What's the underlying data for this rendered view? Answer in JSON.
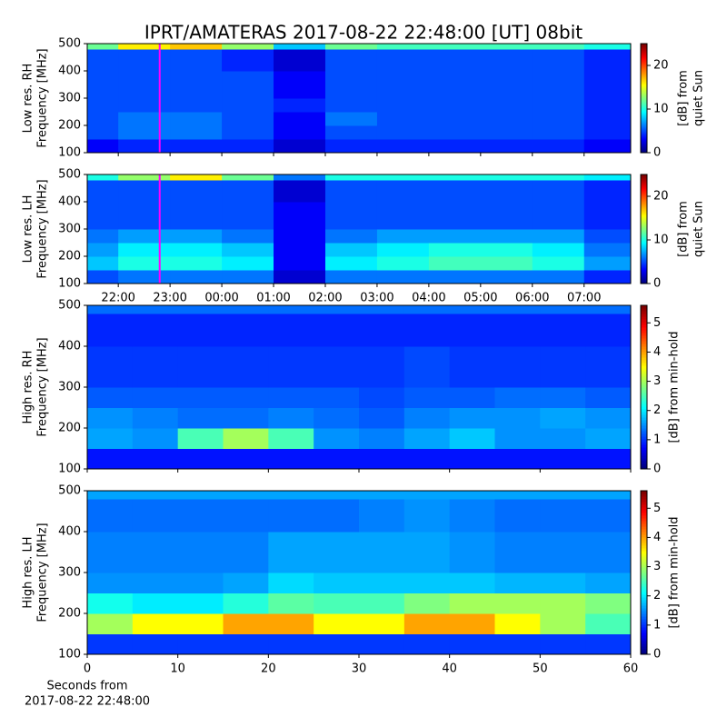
{
  "title": "IPRT/AMATERAS 2017-08-22 22:48:00 [UT]   08bit",
  "chart_data": [
    {
      "type": "heatmap",
      "ylabel": [
        "Low res. RH",
        "Frequency [MHz]"
      ],
      "zlabel": [
        "[dB] from",
        "quiet Sun"
      ],
      "colormap": "jet",
      "xlim": [
        21.4,
        31.9
      ],
      "xticks": [
        {
          "value": 22,
          "label": "22:00"
        },
        {
          "value": 23,
          "label": "23:00"
        },
        {
          "value": 24,
          "label": "00:00"
        },
        {
          "value": 25,
          "label": "01:00"
        },
        {
          "value": 26,
          "label": "02:00"
        },
        {
          "value": 27,
          "label": "03:00"
        },
        {
          "value": 28,
          "label": "04:00"
        },
        {
          "value": 29,
          "label": "05:00"
        },
        {
          "value": 30,
          "label": "06:00"
        },
        {
          "value": 31,
          "label": "07:00"
        }
      ],
      "show_xticklabels": false,
      "ylim": [
        100,
        500
      ],
      "yticks": [
        100,
        200,
        300,
        400,
        500
      ],
      "zlim": [
        0,
        25
      ],
      "zticks": [
        0,
        10,
        20
      ],
      "marker_x": 22.8,
      "marker_color": "#ff00ff",
      "xbins": [
        21.4,
        22,
        23,
        24,
        25,
        26,
        27,
        28,
        29,
        30,
        31,
        31.9
      ],
      "ybins": [
        100,
        150,
        200,
        250,
        300,
        400,
        480,
        500
      ],
      "z": [
        [
          3,
          4,
          4,
          4,
          2,
          4,
          4,
          4,
          4,
          4,
          3
        ],
        [
          5,
          6,
          6,
          5,
          3,
          5,
          5,
          5,
          5,
          5,
          4
        ],
        [
          5,
          6,
          6,
          5,
          3,
          6,
          5,
          5,
          5,
          5,
          4
        ],
        [
          5,
          5,
          5,
          5,
          4,
          5,
          5,
          5,
          5,
          5,
          4
        ],
        [
          5,
          5,
          5,
          5,
          3,
          5,
          5,
          5,
          5,
          5,
          4
        ],
        [
          5,
          5,
          5,
          4,
          2,
          5,
          5,
          5,
          5,
          5,
          4
        ],
        [
          12,
          16,
          17,
          13,
          8,
          12,
          11,
          11,
          11,
          11,
          10
        ]
      ]
    },
    {
      "type": "heatmap",
      "ylabel": [
        "Low res. LH",
        "Frequency [MHz]"
      ],
      "zlabel": [
        "[dB] from",
        "quiet Sun"
      ],
      "colormap": "jet",
      "xlim": [
        21.4,
        31.9
      ],
      "xticks": [
        {
          "value": 22,
          "label": "22:00"
        },
        {
          "value": 23,
          "label": "23:00"
        },
        {
          "value": 24,
          "label": "00:00"
        },
        {
          "value": 25,
          "label": "01:00"
        },
        {
          "value": 26,
          "label": "02:00"
        },
        {
          "value": 27,
          "label": "03:00"
        },
        {
          "value": 28,
          "label": "04:00"
        },
        {
          "value": 29,
          "label": "05:00"
        },
        {
          "value": 30,
          "label": "06:00"
        },
        {
          "value": 31,
          "label": "07:00"
        }
      ],
      "show_xticklabels": true,
      "ylim": [
        100,
        500
      ],
      "yticks": [
        100,
        200,
        300,
        400,
        500
      ],
      "zlim": [
        0,
        25
      ],
      "zticks": [
        0,
        10,
        20
      ],
      "marker_x": 22.8,
      "marker_color": "#ff00ff",
      "xbins": [
        21.4,
        22,
        23,
        24,
        25,
        26,
        27,
        28,
        29,
        30,
        31,
        31.9
      ],
      "ybins": [
        100,
        150,
        200,
        250,
        300,
        400,
        480,
        500
      ],
      "z": [
        [
          5,
          6,
          6,
          6,
          2,
          6,
          6,
          6,
          6,
          6,
          4
        ],
        [
          8,
          10,
          10,
          9,
          3,
          9,
          10,
          11,
          11,
          10,
          7
        ],
        [
          7,
          9,
          9,
          8,
          3,
          8,
          9,
          10,
          10,
          9,
          6
        ],
        [
          6,
          7,
          7,
          6,
          3,
          6,
          7,
          7,
          7,
          7,
          5
        ],
        [
          5,
          5,
          5,
          5,
          3,
          5,
          5,
          5,
          5,
          5,
          4
        ],
        [
          5,
          5,
          5,
          5,
          2,
          5,
          5,
          5,
          5,
          5,
          4
        ],
        [
          10,
          13,
          16,
          12,
          6,
          10,
          10,
          10,
          10,
          10,
          9
        ]
      ]
    },
    {
      "type": "heatmap",
      "ylabel": [
        "High res. RH",
        "Frequency [MHz]"
      ],
      "zlabel": [
        "[dB] from min-hold"
      ],
      "colormap": "jet",
      "xlim": [
        0,
        60
      ],
      "xticks": [
        0,
        10,
        20,
        30,
        40,
        50,
        60
      ],
      "show_xticklabels": false,
      "ylim": [
        100,
        500
      ],
      "yticks": [
        100,
        200,
        300,
        400,
        500
      ],
      "zlim": [
        0,
        5.6
      ],
      "zticks": [
        0,
        1,
        2,
        3,
        4,
        5
      ],
      "xbins": [
        0,
        5,
        10,
        15,
        20,
        25,
        30,
        35,
        40,
        45,
        50,
        55,
        60
      ],
      "ybins": [
        100,
        150,
        200,
        250,
        300,
        400,
        480,
        500
      ],
      "z": [
        [
          0.8,
          0.8,
          0.8,
          0.8,
          0.8,
          0.8,
          0.8,
          0.8,
          0.8,
          0.8,
          0.8,
          0.8
        ],
        [
          1.6,
          1.5,
          2.5,
          3,
          2.5,
          1.5,
          1.4,
          1.6,
          1.8,
          1.5,
          1.5,
          1.6
        ],
        [
          1.5,
          1.4,
          1.3,
          1.3,
          1.4,
          1.3,
          1.2,
          1.4,
          1.5,
          1.5,
          1.6,
          1.5
        ],
        [
          1.2,
          1.2,
          1.2,
          1.2,
          1.2,
          1.2,
          1.1,
          1.2,
          1.2,
          1.3,
          1.3,
          1.2
        ],
        [
          1,
          1,
          1,
          1,
          1,
          1,
          1,
          1.1,
          1,
          1,
          1,
          1
        ],
        [
          0.9,
          0.9,
          0.9,
          0.9,
          0.9,
          0.9,
          0.9,
          0.9,
          0.9,
          0.9,
          0.9,
          0.9
        ],
        [
          1.3,
          1.3,
          1.3,
          1.3,
          1.3,
          1.3,
          1.3,
          1.3,
          1.3,
          1.3,
          1.3,
          1.3
        ]
      ]
    },
    {
      "type": "heatmap",
      "ylabel": [
        "High res. LH",
        "Frequency [MHz]"
      ],
      "zlabel": [
        "[dB] from min-hold"
      ],
      "colormap": "jet",
      "xlabel": [
        "Seconds from",
        "2017-08-22 22:48:00"
      ],
      "xlim": [
        0,
        60
      ],
      "xticks": [
        0,
        10,
        20,
        30,
        40,
        50,
        60
      ],
      "show_xticklabels": true,
      "ylim": [
        100,
        500
      ],
      "yticks": [
        100,
        200,
        300,
        400,
        500
      ],
      "zlim": [
        0,
        5.6
      ],
      "zticks": [
        0,
        1,
        2,
        3,
        4,
        5
      ],
      "xbins": [
        0,
        5,
        10,
        15,
        20,
        25,
        30,
        35,
        40,
        45,
        50,
        55,
        60
      ],
      "ybins": [
        100,
        150,
        200,
        250,
        300,
        400,
        480,
        500
      ],
      "z": [
        [
          1,
          1,
          1,
          1,
          1,
          1,
          1,
          1,
          1,
          1,
          1,
          1
        ],
        [
          3,
          3.5,
          3.5,
          4,
          4,
          3.5,
          3.5,
          4,
          4,
          3.5,
          3,
          2.5
        ],
        [
          2.2,
          2,
          2,
          2.3,
          2.6,
          2.5,
          2.5,
          2.8,
          3,
          3,
          3,
          2.8
        ],
        [
          1.5,
          1.5,
          1.5,
          1.6,
          1.9,
          1.8,
          1.8,
          1.8,
          1.8,
          1.7,
          1.7,
          1.6
        ],
        [
          1.4,
          1.4,
          1.4,
          1.4,
          1.6,
          1.6,
          1.6,
          1.6,
          1.5,
          1.4,
          1.4,
          1.4
        ],
        [
          1.3,
          1.3,
          1.3,
          1.3,
          1.3,
          1.3,
          1.4,
          1.5,
          1.4,
          1.3,
          1.3,
          1.3
        ],
        [
          1.6,
          1.6,
          1.6,
          1.6,
          1.6,
          1.6,
          1.6,
          1.6,
          1.6,
          1.6,
          1.6,
          1.6
        ]
      ]
    }
  ]
}
